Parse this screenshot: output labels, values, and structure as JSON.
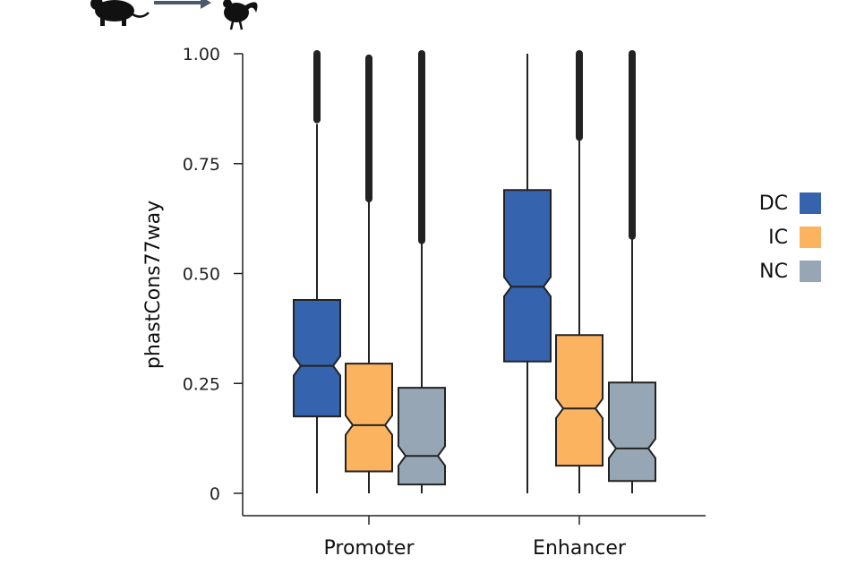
{
  "header_icons": [
    "mouse-icon",
    "arrow-right-icon",
    "rooster-icon"
  ],
  "chart_data": {
    "type": "boxplot",
    "notched": true,
    "ylabel": "phastCons77way",
    "ylim": [
      0,
      1
    ],
    "yticks": [
      "0",
      "0.25",
      "0.50",
      "0.75",
      "1.00"
    ],
    "ytick_values": [
      0,
      0.25,
      0.5,
      0.75,
      1.0
    ],
    "categories": [
      "Promoter",
      "Enhancer"
    ],
    "legend": [
      {
        "name": "DC",
        "color": "#3563ad"
      },
      {
        "name": "IC",
        "color": "#fbb35f"
      },
      {
        "name": "NC",
        "color": "#97a6b4"
      }
    ],
    "legend_position": "right",
    "series": [
      {
        "name": "DC",
        "color": "#3563ad",
        "boxes": [
          {
            "category": "Promoter",
            "whisker_low": 0.0,
            "q1": 0.175,
            "median": 0.29,
            "q3": 0.44,
            "whisker_high": 0.84,
            "outliers_from": 0.85,
            "outliers_to": 1.0
          },
          {
            "category": "Enhancer",
            "whisker_low": 0.0,
            "q1": 0.3,
            "median": 0.47,
            "q3": 0.69,
            "whisker_high": 1.0,
            "outliers_from": null,
            "outliers_to": null
          }
        ]
      },
      {
        "name": "IC",
        "color": "#fbb35f",
        "boxes": [
          {
            "category": "Promoter",
            "whisker_low": 0.0,
            "q1": 0.05,
            "median": 0.155,
            "q3": 0.295,
            "whisker_high": 0.665,
            "outliers_from": 0.67,
            "outliers_to": 0.99
          },
          {
            "category": "Enhancer",
            "whisker_low": 0.0,
            "q1": 0.063,
            "median": 0.193,
            "q3": 0.36,
            "whisker_high": 0.805,
            "outliers_from": 0.81,
            "outliers_to": 1.0
          }
        ]
      },
      {
        "name": "NC",
        "color": "#97a6b4",
        "boxes": [
          {
            "category": "Promoter",
            "whisker_low": 0.0,
            "q1": 0.02,
            "median": 0.085,
            "q3": 0.24,
            "whisker_high": 0.57,
            "outliers_from": 0.575,
            "outliers_to": 1.0
          },
          {
            "category": "Enhancer",
            "whisker_low": 0.0,
            "q1": 0.028,
            "median": 0.102,
            "q3": 0.252,
            "whisker_high": 0.58,
            "outliers_from": 0.585,
            "outliers_to": 1.0
          }
        ]
      }
    ]
  }
}
